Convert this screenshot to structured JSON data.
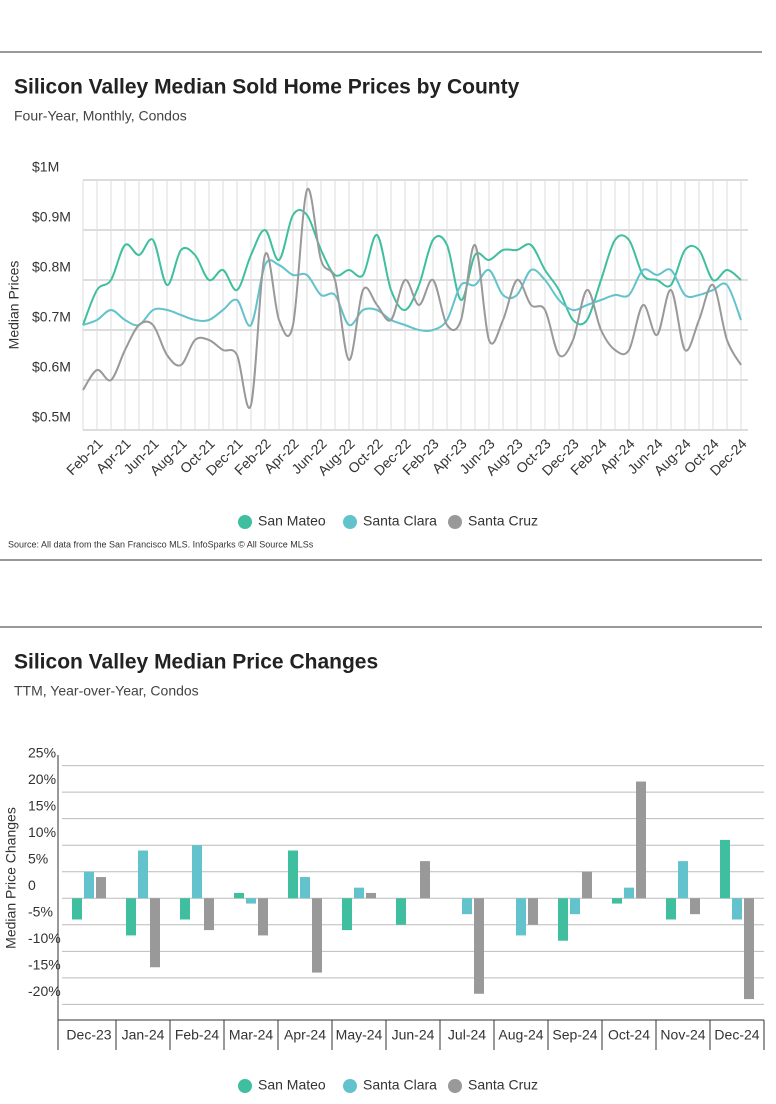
{
  "chart_data": [
    {
      "type": "line",
      "title": "Silicon Valley Median Sold Home Prices by County",
      "subtitle": "Four-Year, Monthly, Condos",
      "y_label": "Median Prices",
      "source": "Source:  All data from the San Francisco MLS. InfoSparks © All Source MLSs",
      "categories": [
        null,
        "Feb-21",
        null,
        "Apr-21",
        null,
        "Jun-21",
        null,
        "Aug-21",
        null,
        "Oct-21",
        null,
        "Dec-21",
        null,
        "Feb-22",
        null,
        "Apr-22",
        null,
        "Jun-22",
        null,
        "Aug-22",
        null,
        "Oct-22",
        null,
        "Dec-22",
        null,
        "Feb-23",
        null,
        "Apr-23",
        null,
        "Jun-23",
        null,
        "Aug-23",
        null,
        "Oct-23",
        null,
        "Dec-23",
        null,
        "Feb-24",
        null,
        "Apr-24",
        null,
        "Jun-24",
        null,
        "Aug-24",
        null,
        "Oct-24",
        null,
        "Dec-24"
      ],
      "series": [
        {
          "name": "San Mateo",
          "color": "#3fbf9f",
          "values": [
            710000,
            780000,
            800000,
            870000,
            850000,
            880000,
            790000,
            860000,
            850000,
            800000,
            820000,
            780000,
            850000,
            900000,
            840000,
            930000,
            930000,
            860000,
            810000,
            820000,
            810000,
            890000,
            780000,
            740000,
            790000,
            880000,
            870000,
            760000,
            850000,
            840000,
            860000,
            860000,
            870000,
            820000,
            780000,
            720000,
            720000,
            800000,
            880000,
            880000,
            810000,
            800000,
            790000,
            860000,
            860000,
            800000,
            820000,
            800000
          ]
        },
        {
          "name": "Santa Clara",
          "color": "#62c3cc",
          "values": [
            710000,
            720000,
            740000,
            720000,
            710000,
            740000,
            740000,
            730000,
            720000,
            720000,
            740000,
            760000,
            710000,
            830000,
            830000,
            810000,
            810000,
            770000,
            770000,
            710000,
            740000,
            740000,
            720000,
            710000,
            700000,
            700000,
            720000,
            790000,
            790000,
            820000,
            770000,
            770000,
            820000,
            800000,
            760000,
            740000,
            750000,
            760000,
            770000,
            770000,
            820000,
            810000,
            820000,
            770000,
            770000,
            780000,
            790000,
            720000
          ]
        },
        {
          "name": "Santa Cruz",
          "color": "#999999",
          "values": [
            580000,
            620000,
            600000,
            660000,
            710000,
            710000,
            650000,
            630000,
            680000,
            680000,
            660000,
            650000,
            550000,
            850000,
            720000,
            710000,
            980000,
            840000,
            800000,
            640000,
            780000,
            750000,
            720000,
            800000,
            750000,
            800000,
            710000,
            720000,
            870000,
            680000,
            720000,
            800000,
            750000,
            740000,
            650000,
            680000,
            780000,
            700000,
            660000,
            660000,
            750000,
            690000,
            780000,
            660000,
            720000,
            790000,
            680000,
            630000
          ]
        }
      ],
      "ylim": [
        500000,
        1000000
      ],
      "yticks": [
        {
          "value": 500000,
          "label": "$0.5M"
        },
        {
          "value": 600000,
          "label": "$0.6M"
        },
        {
          "value": 700000,
          "label": "$0.7M"
        },
        {
          "value": 800000,
          "label": "$0.8M"
        },
        {
          "value": 900000,
          "label": "$0.9M"
        },
        {
          "value": 1000000,
          "label": "$1M"
        }
      ],
      "grid": true,
      "legend": "bottom"
    },
    {
      "type": "bar",
      "title": "Silicon Valley Median Price Changes",
      "subtitle": "TTM, Year-over-Year, Condos",
      "y_label": "Median Price Changes",
      "categories": [
        "Dec-23",
        "Jan-24",
        "Feb-24",
        "Mar-24",
        "Apr-24",
        "May-24",
        "Jun-24",
        "Jul-24",
        "Aug-24",
        "Sep-24",
        "Oct-24",
        "Nov-24",
        "Dec-24"
      ],
      "series": [
        {
          "name": "San Mateo",
          "color": "#3fbf9f",
          "values": [
            -4,
            -7,
            -4,
            1,
            9,
            -6,
            -5,
            0,
            0,
            -8,
            -1,
            -4,
            11
          ]
        },
        {
          "name": "Santa Clara",
          "color": "#62c3cc",
          "values": [
            5,
            9,
            10,
            -1,
            4,
            2,
            0,
            -3,
            -7,
            -3,
            2,
            7,
            -4
          ]
        },
        {
          "name": "Santa Cruz",
          "color": "#999999",
          "values": [
            4,
            -13,
            -6,
            -7,
            -14,
            1,
            7,
            -18,
            -5,
            5,
            22,
            -3,
            -19
          ]
        }
      ],
      "ylim": [
        -22,
        27
      ],
      "yticks": [
        {
          "value": -20,
          "label": "-20%"
        },
        {
          "value": -15,
          "label": "-15%"
        },
        {
          "value": -10,
          "label": "-10%"
        },
        {
          "value": -5,
          "label": "-5%"
        },
        0,
        {
          "value": 5,
          "label": "5%"
        },
        {
          "value": 10,
          "label": "10%"
        },
        {
          "value": 15,
          "label": "15%"
        },
        {
          "value": 20,
          "label": "20%"
        },
        {
          "value": 25,
          "label": "25%"
        }
      ],
      "grid": true,
      "legend": "bottom"
    }
  ]
}
